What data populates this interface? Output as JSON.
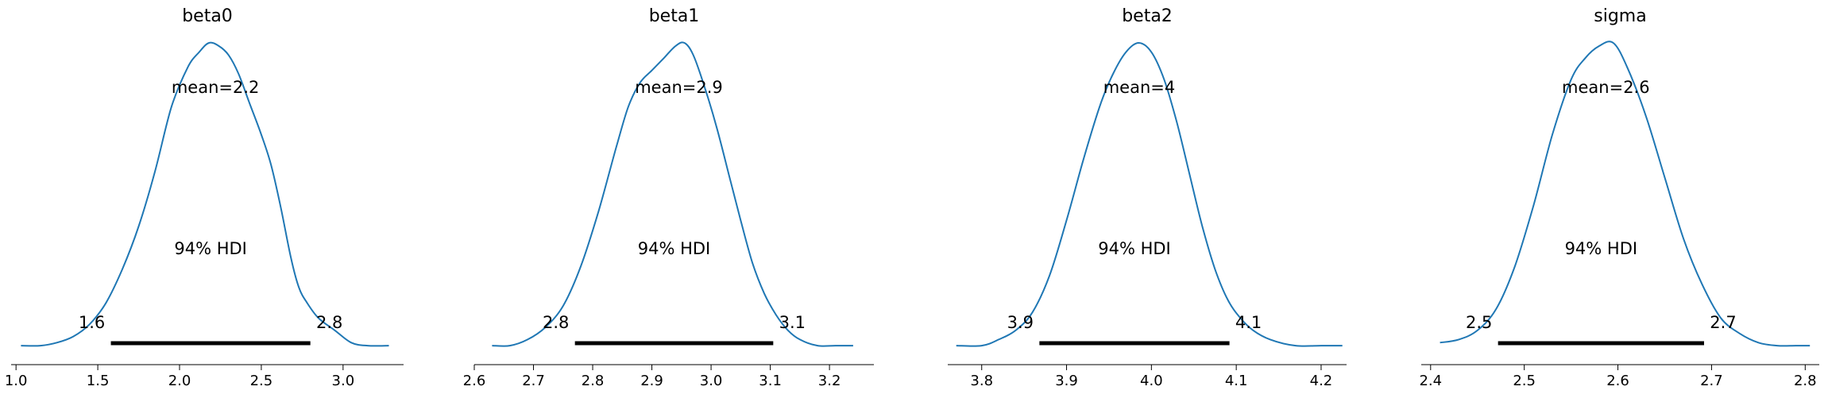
{
  "figure": {
    "type": "posterior_plot"
  },
  "colors": {
    "kde": "#1f77b4",
    "hdi": "#000000",
    "axis": "#000000"
  },
  "chart_data": [
    {
      "type": "line",
      "title": "beta0",
      "mean_label": "mean=2.2",
      "hdi_label": "94% HDI",
      "hdi": [
        1.58,
        2.8
      ],
      "hdi_labels": [
        "1.6",
        "2.8"
      ],
      "xlim": [
        0.97,
        3.37
      ],
      "ticks": [
        1.0,
        1.5,
        2.0,
        2.5,
        3.0
      ],
      "tick_labels": [
        "1.0",
        "1.5",
        "2.0",
        "2.5",
        "3.0"
      ],
      "x": [
        1.03,
        1.15,
        1.25,
        1.35,
        1.45,
        1.55,
        1.65,
        1.75,
        1.85,
        1.95,
        2.05,
        2.12,
        2.18,
        2.24,
        2.3,
        2.36,
        2.43,
        2.5,
        2.56,
        2.62,
        2.68,
        2.73,
        2.78,
        2.85,
        2.95,
        3.05,
        3.15,
        3.28
      ],
      "density": [
        0.01,
        0.01,
        0.02,
        0.04,
        0.08,
        0.15,
        0.26,
        0.4,
        0.58,
        0.79,
        0.92,
        0.97,
        1.0,
        0.99,
        0.96,
        0.9,
        0.8,
        0.7,
        0.6,
        0.46,
        0.3,
        0.2,
        0.15,
        0.1,
        0.06,
        0.02,
        0.01,
        0.01
      ]
    },
    {
      "type": "line",
      "title": "beta1",
      "mean_label": "mean=2.9",
      "hdi_label": "94% HDI",
      "hdi": [
        2.77,
        3.105
      ],
      "hdi_labels": [
        "2.8",
        "3.1"
      ],
      "xlim": [
        2.6,
        3.275
      ],
      "ticks": [
        2.6,
        2.7,
        2.8,
        2.9,
        3.0,
        3.1,
        3.2
      ],
      "tick_labels": [
        "2.6",
        "2.7",
        "2.8",
        "2.9",
        "3.0",
        "3.1",
        "3.2"
      ],
      "x": [
        2.63,
        2.66,
        2.69,
        2.72,
        2.75,
        2.78,
        2.81,
        2.84,
        2.86,
        2.88,
        2.9,
        2.92,
        2.94,
        2.955,
        2.97,
        2.99,
        3.01,
        3.03,
        3.05,
        3.07,
        3.09,
        3.11,
        3.13,
        3.15,
        3.18,
        3.21,
        3.24
      ],
      "density": [
        0.01,
        0.01,
        0.03,
        0.07,
        0.14,
        0.27,
        0.45,
        0.66,
        0.79,
        0.87,
        0.91,
        0.95,
        0.99,
        1.0,
        0.96,
        0.85,
        0.72,
        0.57,
        0.42,
        0.28,
        0.18,
        0.11,
        0.06,
        0.03,
        0.01,
        0.01,
        0.01
      ]
    },
    {
      "type": "line",
      "title": "beta2",
      "mean_label": "mean=4",
      "hdi_label": "94% HDI",
      "hdi": [
        3.868,
        4.092
      ],
      "hdi_labels": [
        "3.9",
        "4.1"
      ],
      "xlim": [
        3.76,
        4.23
      ],
      "ticks": [
        3.8,
        3.9,
        4.0,
        4.1,
        4.2
      ],
      "tick_labels": [
        "3.8",
        "3.9",
        "4.0",
        "4.1",
        "4.2"
      ],
      "x": [
        3.77,
        3.8,
        3.82,
        3.84,
        3.86,
        3.88,
        3.9,
        3.92,
        3.94,
        3.955,
        3.97,
        3.985,
        4.0,
        4.015,
        4.03,
        4.045,
        4.06,
        4.075,
        4.09,
        4.105,
        4.12,
        4.14,
        4.17,
        4.2,
        4.225
      ],
      "density": [
        0.01,
        0.01,
        0.03,
        0.06,
        0.12,
        0.24,
        0.42,
        0.62,
        0.8,
        0.9,
        0.97,
        1.0,
        0.97,
        0.88,
        0.74,
        0.57,
        0.4,
        0.26,
        0.16,
        0.1,
        0.06,
        0.03,
        0.01,
        0.01,
        0.01
      ]
    },
    {
      "type": "line",
      "title": "sigma",
      "mean_label": "mean=2.6",
      "hdi_label": "94% HDI",
      "hdi": [
        2.472,
        2.692
      ],
      "hdi_labels": [
        "2.5",
        "2.7"
      ],
      "xlim": [
        2.39,
        2.815
      ],
      "ticks": [
        2.4,
        2.5,
        2.6,
        2.7,
        2.8
      ],
      "tick_labels": [
        "2.4",
        "2.5",
        "2.6",
        "2.7",
        "2.8"
      ],
      "x": [
        2.41,
        2.43,
        2.45,
        2.47,
        2.49,
        2.51,
        2.53,
        2.55,
        2.565,
        2.58,
        2.595,
        2.61,
        2.63,
        2.65,
        2.67,
        2.69,
        2.71,
        2.73,
        2.75,
        2.77,
        2.79,
        2.805
      ],
      "density": [
        0.02,
        0.03,
        0.06,
        0.13,
        0.27,
        0.47,
        0.7,
        0.88,
        0.95,
        0.99,
        1.0,
        0.92,
        0.76,
        0.56,
        0.36,
        0.21,
        0.1,
        0.05,
        0.02,
        0.01,
        0.01,
        0.01
      ]
    }
  ]
}
